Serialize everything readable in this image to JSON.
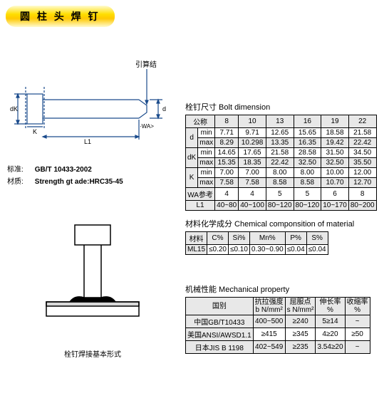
{
  "title": "圆 柱 头 焊 钉",
  "spec": {
    "std_label": "标准:",
    "std_value": "GB/T 10433-2002",
    "mat_label": "材质:",
    "mat_value": "Strength gt ade:HRC35-45"
  },
  "diagram_top": {
    "label_yinsuanxi": "引算结",
    "k": "K",
    "dK": "dK",
    "L1": "L1",
    "WA": "·WA>",
    "d": "d"
  },
  "diagram_bottom_caption": "栓钉焊接基本形式",
  "bolt_dim": {
    "title": "栓钉尺寸  Bolt dimension",
    "col_label": "公称",
    "sizes": [
      "8",
      "10",
      "13",
      "16",
      "19",
      "22"
    ],
    "rows": [
      {
        "g": "d",
        "sub": "min",
        "vals": [
          "7.71",
          "9.71",
          "12.65",
          "15.65",
          "18.58",
          "21.58"
        ],
        "alt": false
      },
      {
        "g": "",
        "sub": "max",
        "vals": [
          "8.29",
          "10.298",
          "13.35",
          "16.35",
          "19.42",
          "22.42"
        ],
        "alt": true
      },
      {
        "g": "dK",
        "sub": "min",
        "vals": [
          "14.65",
          "17.65",
          "21.58",
          "28.58",
          "31.50",
          "34.50"
        ],
        "alt": false
      },
      {
        "g": "",
        "sub": "max",
        "vals": [
          "15.35",
          "18.35",
          "22.42",
          "32.50",
          "32.50",
          "35.50"
        ],
        "alt": true
      },
      {
        "g": "K",
        "sub": "min",
        "vals": [
          "7.00",
          "7.00",
          "8.00",
          "8.00",
          "10.00",
          "12.00"
        ],
        "alt": false
      },
      {
        "g": "",
        "sub": "max",
        "vals": [
          "7.58",
          "7.58",
          "8.58",
          "8.58",
          "10.70",
          "12.70"
        ],
        "alt": true
      }
    ],
    "wa_label": "WA参考",
    "wa_vals": [
      "4",
      "4",
      "5",
      "5",
      "6",
      "8"
    ],
    "l1_label": "L1",
    "l1_vals": [
      "40~80",
      "40~100",
      "80~120",
      "80~120",
      "10~170",
      "80~200"
    ]
  },
  "chem": {
    "title": "材料化学成分  Chemical componsition of material",
    "headers": [
      "材料",
      "C%",
      "Si%",
      "Mn%",
      "P%",
      "S%"
    ],
    "row": [
      "ML15",
      "≤0.20",
      "≤0.10",
      "0.30~0.90",
      "≤0.04",
      "≤0.04"
    ]
  },
  "mech": {
    "title": "机械性能  Mechanical property",
    "headers": [
      "国别",
      "抗拉强度\nb N/mm²",
      "屈服点\ns N/mm²",
      "伸长率\n%",
      "收缩率\n%"
    ],
    "rows": [
      [
        "中国GB/T10433",
        "400~500",
        "≥240",
        "5≥14",
        "~"
      ],
      [
        "美国ANSI/AWSD1.1",
        "≥415",
        "≥345",
        "4≥20",
        "≥50"
      ],
      [
        "日本JIS B 1198",
        "402~549",
        "≥235",
        "3.54≥20",
        "~"
      ]
    ]
  }
}
